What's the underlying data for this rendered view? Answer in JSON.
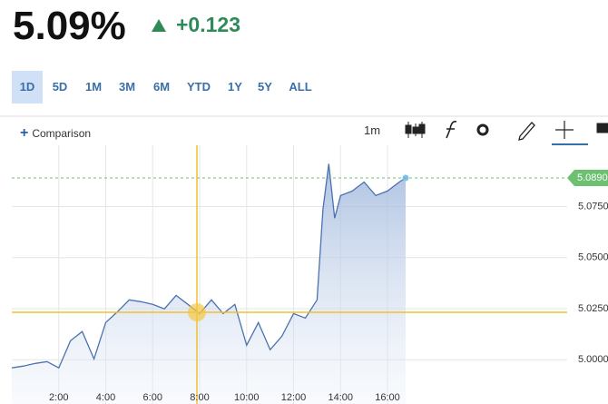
{
  "header": {
    "price": "5.09%",
    "change": "+0.123"
  },
  "range_buttons": [
    "1D",
    "5D",
    "1M",
    "3M",
    "6M",
    "YTD",
    "1Y",
    "5Y",
    "ALL"
  ],
  "toolbar": {
    "comparison": "Comparison",
    "interval": "1m"
  },
  "chart_data": {
    "type": "line",
    "color": "#4a72b0",
    "grid": true,
    "x": [
      0,
      0.5,
      1,
      1.5,
      2,
      2.5,
      3,
      3.5,
      4,
      4.5,
      5,
      5.5,
      6,
      6.5,
      7,
      7.5,
      8,
      8.5,
      9,
      9.5,
      10,
      10.5,
      11,
      11.5,
      12,
      12.5,
      13,
      13.25,
      13.5,
      13.75,
      14,
      14.5,
      15,
      15.5,
      16,
      16.5,
      16.77
    ],
    "values": [
      4.996,
      4.9969,
      4.9982,
      4.9991,
      4.996,
      5.0093,
      5.0138,
      5.0004,
      5.0182,
      5.0235,
      5.0293,
      5.0284,
      5.0271,
      5.0249,
      5.0315,
      5.0271,
      5.0226,
      5.0293,
      5.0226,
      5.0271,
      5.0071,
      5.0182,
      5.0049,
      5.0115,
      5.0226,
      5.0204,
      5.0293,
      5.0737,
      5.0959,
      5.0693,
      5.0804,
      5.0826,
      5.087,
      5.0804,
      5.0826,
      5.087,
      5.089
    ],
    "xlim": [
      0,
      23.65
    ],
    "ylim": [
      4.985,
      5.105
    ],
    "xticks": [
      {
        "value": 2,
        "label": "2:00"
      },
      {
        "value": 4,
        "label": "4:00"
      },
      {
        "value": 6,
        "label": "6:00"
      },
      {
        "value": 8,
        "label": "8:00"
      },
      {
        "value": 10,
        "label": "10:00"
      },
      {
        "value": 12,
        "label": "12:00"
      },
      {
        "value": 14,
        "label": "14:00"
      },
      {
        "value": 16,
        "label": "16:00"
      }
    ],
    "yticks": [
      {
        "value": 5,
        "label": "5.0000"
      },
      {
        "value": 5.025,
        "label": "5.0250"
      },
      {
        "value": 5.05,
        "label": "5.0500"
      },
      {
        "value": 5.075,
        "label": "5.0750"
      }
    ],
    "last_value": {
      "value": 5.089,
      "label": "5.0890"
    }
  }
}
